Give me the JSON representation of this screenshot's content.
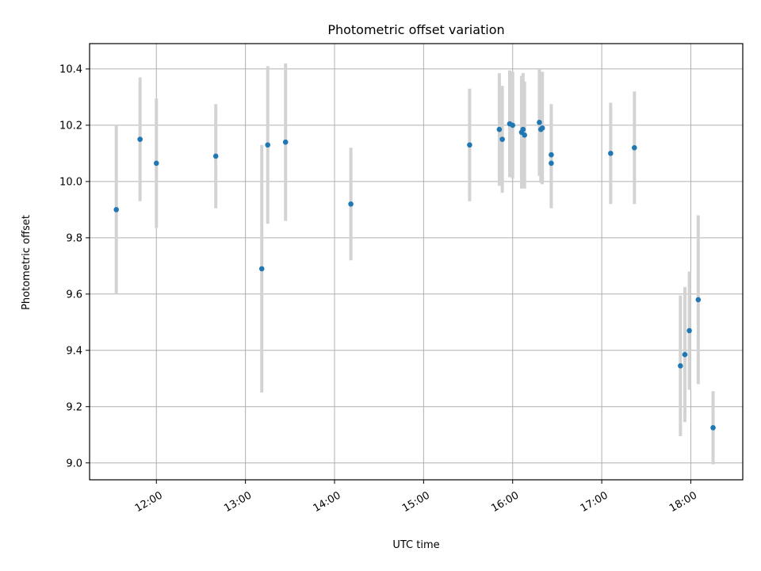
{
  "chart_data": {
    "type": "scatter",
    "title": "Photometric offset variation",
    "xlabel": "UTC time",
    "ylabel": "Photometric offset",
    "xlim": [
      "11:15",
      "18:35"
    ],
    "ylim": [
      8.94,
      10.49
    ],
    "x_ticks": [
      "12:00",
      "13:00",
      "14:00",
      "15:00",
      "16:00",
      "17:00",
      "18:00"
    ],
    "y_ticks": [
      "9.0",
      "9.2",
      "9.4",
      "9.6",
      "9.8",
      "10.0",
      "10.2",
      "10.4"
    ],
    "grid": true,
    "point_color": "#1f77b4",
    "errorbar_color": "#d3d3d3",
    "series": [
      {
        "points": [
          {
            "x": "11:33",
            "y": 9.9,
            "err": 0.3
          },
          {
            "x": "11:49",
            "y": 10.15,
            "err": 0.22
          },
          {
            "x": "12:00",
            "y": 10.065,
            "err": 0.23
          },
          {
            "x": "12:40",
            "y": 10.09,
            "err": 0.185
          },
          {
            "x": "13:11",
            "y": 9.69,
            "err": 0.44
          },
          {
            "x": "13:15",
            "y": 10.13,
            "err": 0.28
          },
          {
            "x": "13:27",
            "y": 10.14,
            "err": 0.28
          },
          {
            "x": "14:11",
            "y": 9.92,
            "err": 0.2
          },
          {
            "x": "15:31",
            "y": 10.13,
            "err": 0.2
          },
          {
            "x": "15:51",
            "y": 10.185,
            "err": 0.2
          },
          {
            "x": "15:53",
            "y": 10.15,
            "err": 0.19
          },
          {
            "x": "15:58",
            "y": 10.205,
            "err": 0.19
          },
          {
            "x": "16:00",
            "y": 10.2,
            "err": 0.19
          },
          {
            "x": "16:06",
            "y": 10.175,
            "err": 0.2
          },
          {
            "x": "16:07",
            "y": 10.185,
            "err": 0.2
          },
          {
            "x": "16:08",
            "y": 10.165,
            "err": 0.19
          },
          {
            "x": "16:18",
            "y": 10.21,
            "err": 0.19
          },
          {
            "x": "16:19",
            "y": 10.185,
            "err": 0.19
          },
          {
            "x": "16:20",
            "y": 10.19,
            "err": 0.2
          },
          {
            "x": "16:26",
            "y": 10.065,
            "err": 0.16
          },
          {
            "x": "16:26",
            "y": 10.095,
            "err": 0.18
          },
          {
            "x": "17:06",
            "y": 10.1,
            "err": 0.18
          },
          {
            "x": "17:22",
            "y": 10.12,
            "err": 0.2
          },
          {
            "x": "17:53",
            "y": 9.345,
            "err": 0.25
          },
          {
            "x": "17:56",
            "y": 9.385,
            "err": 0.24
          },
          {
            "x": "17:59",
            "y": 9.47,
            "err": 0.21
          },
          {
            "x": "18:05",
            "y": 9.58,
            "err": 0.3
          },
          {
            "x": "18:15",
            "y": 9.125,
            "err": 0.13
          }
        ]
      }
    ]
  }
}
